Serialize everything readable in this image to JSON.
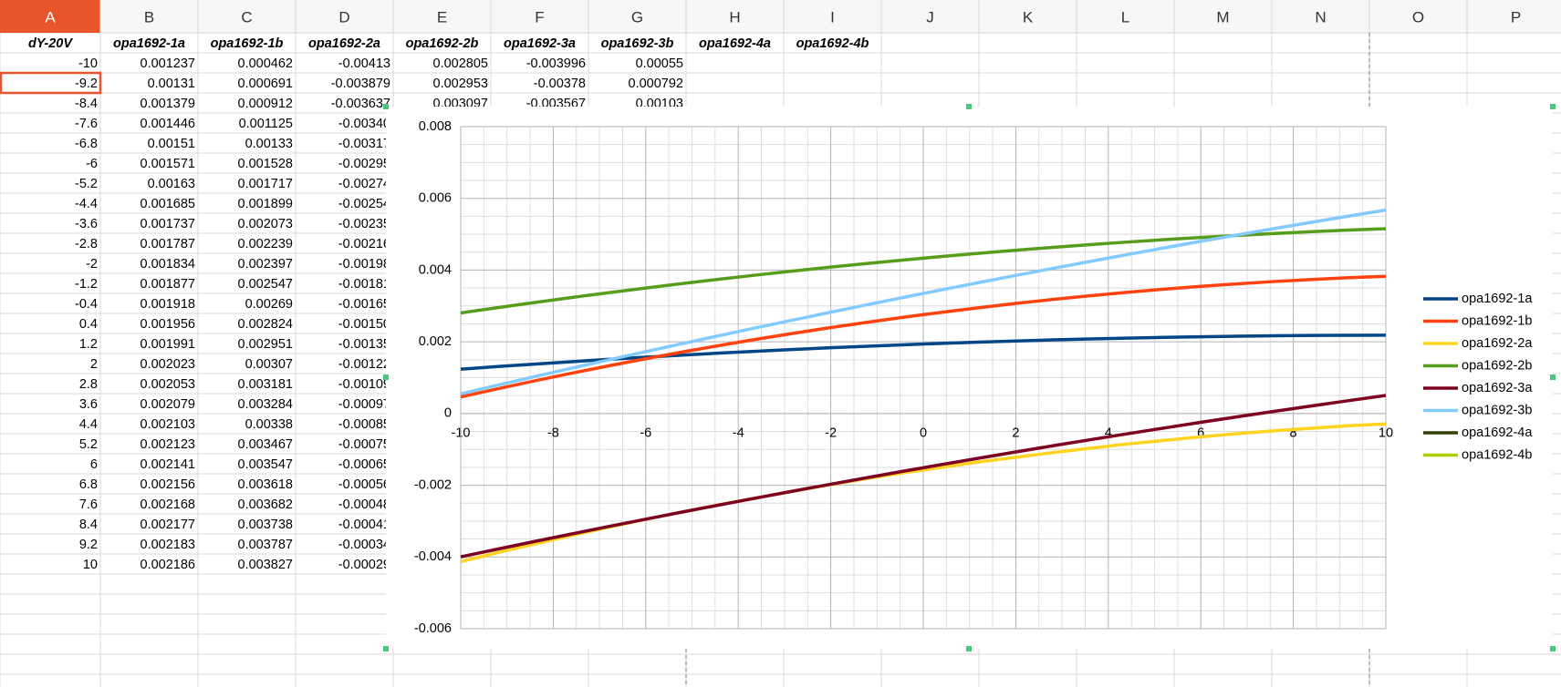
{
  "sheet": {
    "columns": [
      "A",
      "B",
      "C",
      "D",
      "E",
      "F",
      "G",
      "H",
      "I",
      "J",
      "K",
      "L",
      "M",
      "N",
      "O",
      "P"
    ],
    "header_row": [
      "dY-20V",
      "opa1692-1a",
      "opa1692-1b",
      "opa1692-2a",
      "opa1692-2b",
      "opa1692-3a",
      "opa1692-3b",
      "opa1692-4a",
      "opa1692-4b"
    ],
    "rows": [
      [
        "-10",
        "0.001237",
        "0.000462",
        "-0.00413",
        "0.002805",
        "-0.003996",
        "0.00055"
      ],
      [
        "-9.2",
        "0.00131",
        "0.000691",
        "-0.003879",
        "0.002953",
        "-0.00378",
        "0.000792"
      ],
      [
        "-8.4",
        "0.001379",
        "0.000912",
        "-0.003637",
        "0.003097",
        "-0.003567",
        "0.00103"
      ],
      [
        "-7.6",
        "0.001446",
        "0.001125",
        "-0.00340"
      ],
      [
        "-6.8",
        "0.00151",
        "0.00133",
        "-0.00317"
      ],
      [
        "-6",
        "0.001571",
        "0.001528",
        "-0.00295"
      ],
      [
        "-5.2",
        "0.00163",
        "0.001717",
        "-0.00274"
      ],
      [
        "-4.4",
        "0.001685",
        "0.001899",
        "-0.00254"
      ],
      [
        "-3.6",
        "0.001737",
        "0.002073",
        "-0.00235"
      ],
      [
        "-2.8",
        "0.001787",
        "0.002239",
        "-0.00216"
      ],
      [
        "-2",
        "0.001834",
        "0.002397",
        "-0.00198"
      ],
      [
        "-1.2",
        "0.001877",
        "0.002547",
        "-0.00181"
      ],
      [
        "-0.4",
        "0.001918",
        "0.00269",
        "-0.00165"
      ],
      [
        "0.4",
        "0.001956",
        "0.002824",
        "-0.00150"
      ],
      [
        "1.2",
        "0.001991",
        "0.002951",
        "-0.00135"
      ],
      [
        "2",
        "0.002023",
        "0.00307",
        "-0.00122"
      ],
      [
        "2.8",
        "0.002053",
        "0.003181",
        "-0.00109"
      ],
      [
        "3.6",
        "0.002079",
        "0.003284",
        "-0.00097"
      ],
      [
        "4.4",
        "0.002103",
        "0.00338",
        "-0.00085"
      ],
      [
        "5.2",
        "0.002123",
        "0.003467",
        "-0.00075"
      ],
      [
        "6",
        "0.002141",
        "0.003547",
        "-0.00065"
      ],
      [
        "6.8",
        "0.002156",
        "0.003618",
        "-0.00056"
      ],
      [
        "7.6",
        "0.002168",
        "0.003682",
        "-0.00048"
      ],
      [
        "8.4",
        "0.002177",
        "0.003738",
        "-0.00041"
      ],
      [
        "9.2",
        "0.002183",
        "0.003787",
        "-0.00034"
      ],
      [
        "10",
        "0.002186",
        "0.003827",
        "-0.00029"
      ]
    ]
  },
  "chart_data": {
    "type": "line",
    "x": [
      -10,
      -9.2,
      -8.4,
      -7.6,
      -6.8,
      -6,
      -5.2,
      -4.4,
      -3.6,
      -2.8,
      -2,
      -1.2,
      -0.4,
      0.4,
      1.2,
      2,
      2.8,
      3.6,
      4.4,
      5.2,
      6,
      6.8,
      7.6,
      8.4,
      9.2,
      10
    ],
    "xlim": [
      -10,
      10
    ],
    "xticks": [
      -10,
      -8,
      -6,
      -4,
      -2,
      0,
      2,
      4,
      6,
      8,
      10
    ],
    "ylim": [
      -0.006,
      0.008
    ],
    "yticks": [
      -0.006,
      -0.004,
      -0.002,
      0,
      0.002,
      0.004,
      0.006,
      0.008
    ],
    "grid": true,
    "minor_grid": true,
    "legend": "right",
    "series": [
      {
        "name": "opa1692-1a",
        "color": "#004586",
        "values": [
          0.001237,
          0.00131,
          0.001379,
          0.001446,
          0.00151,
          0.001571,
          0.00163,
          0.001685,
          0.001737,
          0.001787,
          0.001834,
          0.001877,
          0.001918,
          0.001956,
          0.001991,
          0.002023,
          0.002053,
          0.002079,
          0.002103,
          0.002123,
          0.002141,
          0.002156,
          0.002168,
          0.002177,
          0.002183,
          0.002186
        ]
      },
      {
        "name": "opa1692-1b",
        "color": "#ff420e",
        "values": [
          0.000462,
          0.000691,
          0.000912,
          0.001125,
          0.00133,
          0.001528,
          0.001717,
          0.001899,
          0.002073,
          0.002239,
          0.002397,
          0.002547,
          0.00269,
          0.002824,
          0.002951,
          0.00307,
          0.003181,
          0.003284,
          0.00338,
          0.003467,
          0.003547,
          0.003618,
          0.003682,
          0.003738,
          0.003787,
          0.003827
        ]
      },
      {
        "name": "opa1692-2a",
        "color": "#ffd320",
        "values": [
          -0.00413,
          -0.003879,
          -0.003637,
          -0.0034,
          -0.00317,
          -0.00295,
          -0.00274,
          -0.00254,
          -0.00235,
          -0.00216,
          -0.00198,
          -0.00181,
          -0.00165,
          -0.0015,
          -0.00135,
          -0.00122,
          -0.00109,
          -0.00097,
          -0.00085,
          -0.00075,
          -0.00065,
          -0.00056,
          -0.00048,
          -0.00041,
          -0.00034,
          -0.00029
        ]
      },
      {
        "name": "opa1692-2b",
        "color": "#579d1c",
        "values": [
          0.002805,
          0.002953,
          0.003097,
          0.003236,
          0.00337,
          0.0035,
          0.003626,
          0.003747,
          0.003863,
          0.003975,
          0.004083,
          0.004186,
          0.004284,
          0.004378,
          0.004468,
          0.004553,
          0.004633,
          0.004709,
          0.004781,
          0.004848,
          0.00491,
          0.004968,
          0.005022,
          0.005071,
          0.005115,
          0.005155
        ]
      },
      {
        "name": "opa1692-3a",
        "color": "#7e0021",
        "values": [
          -0.003996,
          -0.00378,
          -0.003567,
          -0.003357,
          -0.00315,
          -0.002946,
          -0.002745,
          -0.002547,
          -0.002352,
          -0.00216,
          -0.001971,
          -0.001785,
          -0.001602,
          -0.001422,
          -0.001245,
          -0.001071,
          -0.0009,
          -0.000732,
          -0.000567,
          -0.000405,
          -0.000246,
          -9e-05,
          6.3e-05,
          0.000213,
          0.00036,
          0.000504
        ]
      },
      {
        "name": "opa1692-3b",
        "color": "#83caff",
        "values": [
          0.00055,
          0.000792,
          0.00103,
          0.001265,
          0.001497,
          0.001726,
          0.001952,
          0.002175,
          0.002395,
          0.002612,
          0.002826,
          0.003037,
          0.003245,
          0.00345,
          0.003652,
          0.003851,
          0.004047,
          0.00424,
          0.00443,
          0.004617,
          0.004801,
          0.004982,
          0.00516,
          0.005335,
          0.005507,
          0.005676
        ]
      },
      {
        "name": "opa1692-4a",
        "color": "#314004",
        "values": [
          null,
          null,
          null,
          null,
          null,
          null,
          null,
          null,
          null,
          null,
          null,
          null,
          null,
          null,
          null,
          null,
          null,
          null,
          null,
          null,
          null,
          null,
          null,
          null,
          null,
          null
        ]
      },
      {
        "name": "opa1692-4b",
        "color": "#aecf00",
        "values": [
          null,
          null,
          null,
          null,
          null,
          null,
          null,
          null,
          null,
          null,
          null,
          null,
          null,
          null,
          null,
          null,
          null,
          null,
          null,
          null,
          null,
          null,
          null,
          null,
          null,
          null
        ]
      }
    ]
  }
}
